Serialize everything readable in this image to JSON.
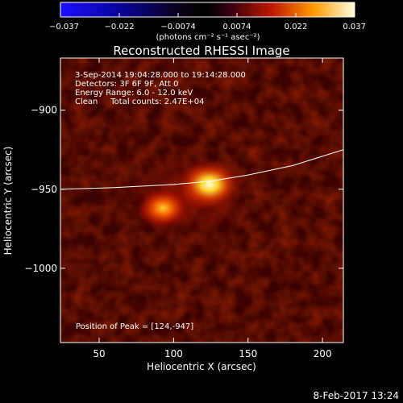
{
  "chart_data": {
    "type": "heatmap",
    "title": "Reconstructed RHESSI Image",
    "xlabel": "Heliocentric X (arcsec)",
    "ylabel": "Heliocentric Y (arcsec)",
    "xlim": [
      24,
      214
    ],
    "ylim": [
      -1047,
      -867
    ],
    "x_ticks": [
      "50",
      "100",
      "150",
      "200"
    ],
    "x_tick_values": [
      50,
      100,
      150,
      200
    ],
    "y_ticks": [
      "−900",
      "−950",
      "−1000"
    ],
    "y_tick_values": [
      -900,
      -950,
      -1000
    ],
    "colorbar": {
      "ticks": [
        "−0.037",
        "−0.022",
        "−0.0074",
        "0.0074",
        "0.022",
        "0.037"
      ],
      "range": [
        -0.037,
        0.037
      ],
      "unit_label": "(photons cm⁻² s⁻¹ asec⁻²)"
    },
    "annotations": [
      "3-Sep-2014 19:04:28.000 to 19:14:28.000",
      "Detectors: 3F 6F 9F, Att 0",
      "Energy Range: 6.0 - 12.0 keV",
      "Clean     Total counts: 2.47E+04"
    ],
    "peak_label": "Position of Peak = [124,-947]",
    "sources": [
      {
        "x": 124,
        "y": -947,
        "intensity": 0.037
      },
      {
        "x": 93,
        "y": -962,
        "intensity": 0.026
      }
    ],
    "limb_curve": {
      "x": [
        24,
        60,
        100,
        124,
        150,
        180,
        214
      ],
      "y": [
        -950,
        -949,
        -947,
        -945,
        -941,
        -935,
        -925
      ]
    },
    "date_stamp": "8-Feb-2017 13:24"
  }
}
